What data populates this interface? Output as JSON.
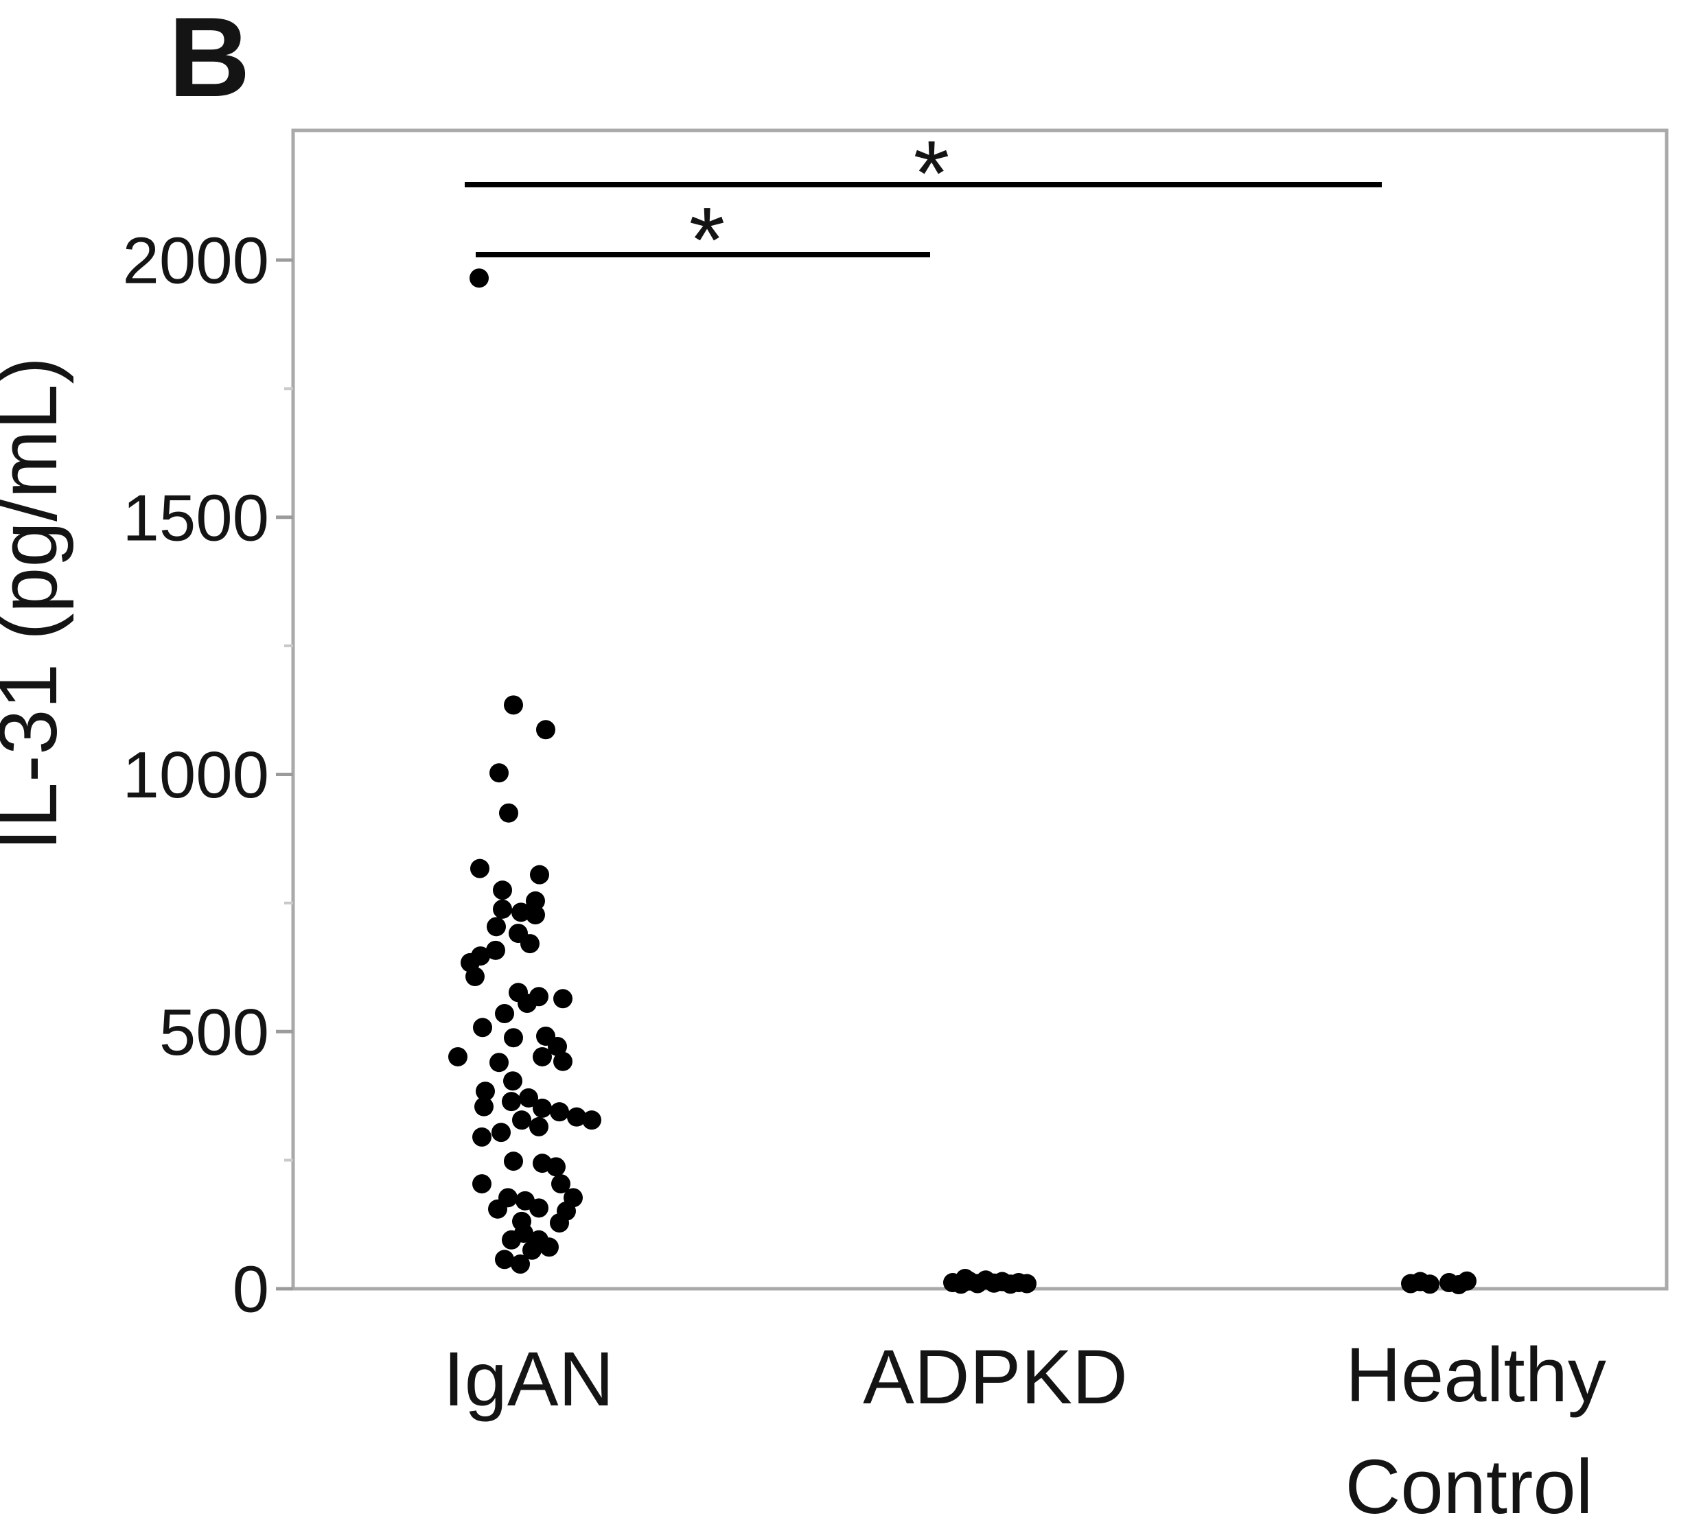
{
  "figure": {
    "panel_label": "B"
  },
  "chart_data": {
    "type": "scatter",
    "title": "",
    "xlabel": "",
    "ylabel": "IL-31 (pg/mL)",
    "ylim": [
      0,
      2250
    ],
    "grid": false,
    "legend": "none",
    "yticks": [
      {
        "value": 0,
        "label": "0"
      },
      {
        "value": 500,
        "label": "500"
      },
      {
        "value": 1000,
        "label": "1000"
      },
      {
        "value": 1500,
        "label": "1500"
      },
      {
        "value": 2000,
        "label": "2000"
      }
    ],
    "minor_ticks": [
      250,
      750,
      1250,
      1750
    ],
    "categories": [
      "IgAN",
      "ADPKD",
      "Healthy Control"
    ],
    "category_label_lines": [
      [
        "IgAN"
      ],
      [
        "ADPKD"
      ],
      [
        "Healthy",
        "Control"
      ]
    ],
    "series": [
      {
        "name": "IgAN",
        "points": [
          [
            -72,
            1965
          ],
          [
            -22,
            1135
          ],
          [
            25,
            1087
          ],
          [
            -43,
            1003
          ],
          [
            -29,
            925
          ],
          [
            -71,
            817
          ],
          [
            16,
            805
          ],
          [
            -38,
            775
          ],
          [
            10,
            754
          ],
          [
            -38,
            738
          ],
          [
            -11,
            732
          ],
          [
            10,
            727
          ],
          [
            -47,
            704
          ],
          [
            -15,
            691
          ],
          [
            2,
            671
          ],
          [
            -48,
            658
          ],
          [
            -70,
            647
          ],
          [
            -85,
            634
          ],
          [
            -78,
            607
          ],
          [
            -15,
            576
          ],
          [
            15,
            568
          ],
          [
            -2,
            555
          ],
          [
            50,
            564
          ],
          [
            -35,
            535
          ],
          [
            -67,
            508
          ],
          [
            -22,
            488
          ],
          [
            25,
            491
          ],
          [
            42,
            471
          ],
          [
            20,
            451
          ],
          [
            50,
            442
          ],
          [
            -103,
            451
          ],
          [
            -43,
            440
          ],
          [
            -23,
            404
          ],
          [
            -63,
            384
          ],
          [
            -65,
            354
          ],
          [
            -25,
            364
          ],
          [
            0,
            371
          ],
          [
            20,
            351
          ],
          [
            45,
            344
          ],
          [
            70,
            334
          ],
          [
            92,
            328
          ],
          [
            -10,
            328
          ],
          [
            15,
            315
          ],
          [
            -40,
            304
          ],
          [
            -68,
            295
          ],
          [
            -22,
            248
          ],
          [
            20,
            244
          ],
          [
            40,
            237
          ],
          [
            -68,
            204
          ],
          [
            47,
            204
          ],
          [
            -30,
            177
          ],
          [
            -5,
            171
          ],
          [
            65,
            177
          ],
          [
            15,
            157
          ],
          [
            -45,
            155
          ],
          [
            55,
            151
          ],
          [
            -10,
            131
          ],
          [
            45,
            128
          ],
          [
            -25,
            95
          ],
          [
            -7,
            108
          ],
          [
            15,
            95
          ],
          [
            30,
            81
          ],
          [
            5,
            75
          ],
          [
            -35,
            57
          ],
          [
            -12,
            48
          ]
        ]
      },
      {
        "name": "ADPKD",
        "points": [
          [
            -62,
            12
          ],
          [
            -50,
            9
          ],
          [
            -38,
            15
          ],
          [
            -26,
            10
          ],
          [
            -14,
            17
          ],
          [
            -2,
            11
          ],
          [
            10,
            14
          ],
          [
            22,
            9
          ],
          [
            34,
            12
          ],
          [
            46,
            10
          ],
          [
            -44,
            20
          ]
        ]
      },
      {
        "name": "Healthy Control",
        "points": [
          [
            -90,
            10
          ],
          [
            -76,
            14
          ],
          [
            -62,
            9
          ],
          [
            -34,
            12
          ],
          [
            -20,
            8
          ],
          [
            -8,
            15
          ]
        ]
      }
    ],
    "significance": [
      {
        "groups": [
          "IgAN",
          "Healthy Control"
        ],
        "label": "*"
      },
      {
        "groups": [
          "IgAN",
          "ADPKD"
        ],
        "label": "*"
      }
    ],
    "colors": {
      "point": "#000000",
      "significance_line": "#000000",
      "frame": "#a9a9a9",
      "major_tick": "#9b9b9b",
      "minor_tick": "#c9c9c9",
      "text": "#141414"
    }
  }
}
